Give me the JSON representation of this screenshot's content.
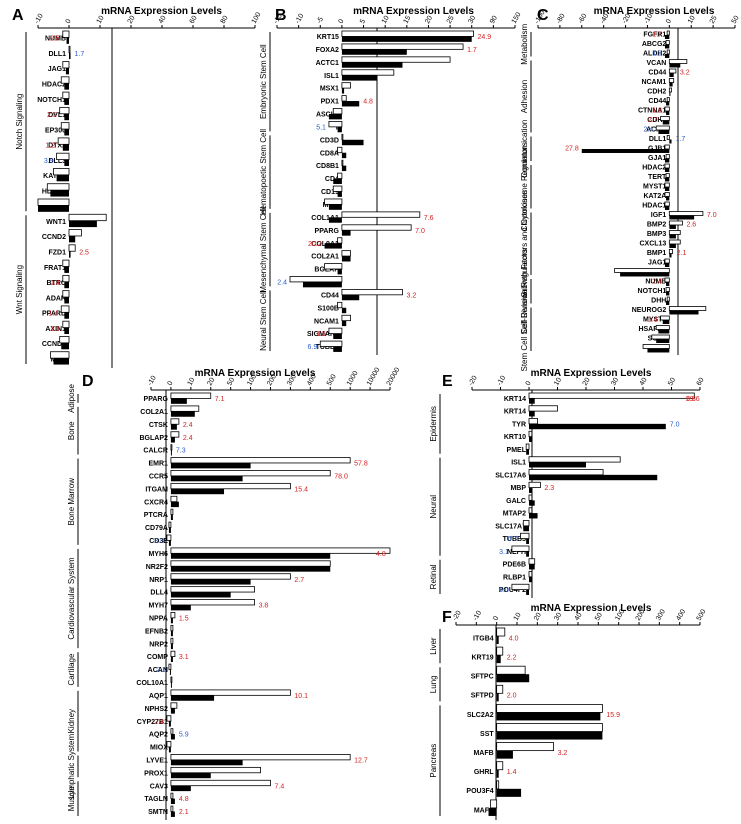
{
  "figure": {
    "panels": [
      "A",
      "B",
      "C",
      "D",
      "E",
      "F"
    ]
  },
  "colors": {
    "open_bar": "#ffffff",
    "filled_bar": "#000000",
    "ratio_red": "#d62020",
    "ratio_blue": "#2a5cc8"
  },
  "chart_data": [
    {
      "panel": "A",
      "type": "bar",
      "orientation": "horizontal",
      "xlabel": "mRNA Expression Levels",
      "ticks": [
        "-10",
        "0",
        "10",
        "20",
        "40",
        "60",
        "80",
        "100"
      ],
      "groups": [
        {
          "label": "Notch Signaling",
          "genes": [
            "NUMB",
            "DLL1",
            "JAG1",
            "HDAC2",
            "NOTCH1",
            "DVL1",
            "EP300",
            "DTX2",
            "DLL3",
            "KAT2A",
            "HDAC1",
            "DTX2"
          ]
        },
        {
          "label": "Wnt Signaling",
          "genes": [
            "WNT1",
            "CCND2",
            "FZD1",
            "FRAT1",
            "BTRC",
            "ADAR",
            "PPARD",
            "AXIN1",
            "CCND1",
            "MYC"
          ]
        }
      ],
      "series": [
        {
          "name": "open",
          "values": [
            -2,
            0.2,
            -2,
            -2.5,
            -2,
            -3,
            -2.5,
            -3.5,
            -4,
            -5,
            -7,
            -12,
            12,
            4,
            2,
            -2,
            -2,
            -2,
            -2.5,
            -2,
            -3,
            -6
          ]
        },
        {
          "name": "filled",
          "values": [
            -0.8,
            0.5,
            -1,
            -1.5,
            -1.5,
            -1.5,
            -1.5,
            -2,
            -1.5,
            -4,
            -6,
            -10,
            9,
            2,
            0.5,
            -1.5,
            -1.5,
            -1.5,
            -1.5,
            -1.5,
            -2.5,
            -5
          ]
        }
      ],
      "ratios": [
        [
          "NUMB",
          "2.5",
          "red"
        ],
        [
          "DLL1",
          "1.7",
          "blue"
        ],
        [
          "DVL1",
          "2.5",
          "red"
        ],
        [
          "DTX2",
          "1.2",
          "red"
        ],
        [
          "DLL3",
          "3.9",
          "blue"
        ],
        [
          "FZD1",
          "2.5",
          "red"
        ],
        [
          "BTRC",
          "1.4",
          "red"
        ],
        [
          "PPARD",
          "1.4",
          "red"
        ],
        [
          "AXIN1",
          "1.3",
          "red"
        ]
      ]
    },
    {
      "panel": "B",
      "type": "bar",
      "orientation": "horizontal",
      "xlabel": "mRNA Expression Levels",
      "ticks": [
        "-15",
        "-10",
        "-5",
        "0",
        "5",
        "10",
        "15",
        "20",
        "25",
        "30",
        "90",
        "150"
      ],
      "groups": [
        {
          "label": "Embryonic Stem Cell",
          "genes": [
            "KRT15",
            "FOXA2",
            "ACTC1",
            "ISL1",
            "MSX1",
            "PDX1",
            "ASCL2",
            "T"
          ]
        },
        {
          "label": "Hematopoetic Stem Cell",
          "genes": [
            "CD3D",
            "CD8A",
            "CD8B1",
            "CD4",
            "CD19",
            "MME"
          ]
        },
        {
          "label": "Mesenchymal Stem Cell",
          "genes": [
            "COL1A1",
            "PPARG",
            "COL9A1",
            "COL2A1",
            "BGLAP",
            "ACAN"
          ]
        },
        {
          "label": "Neural Stem Cell",
          "genes": [
            "CD44",
            "S100B",
            "NCAM1",
            "SIGMAR1",
            "TUBB3"
          ]
        }
      ],
      "series": [
        {
          "name": "open",
          "values": [
            35,
            28,
            25,
            12,
            2,
            1,
            -2,
            -3,
            0,
            -1,
            0,
            -1,
            -2,
            -4,
            18,
            16,
            -1,
            2,
            -4,
            -12,
            14,
            -1,
            2,
            -3,
            -5
          ]
        },
        {
          "name": "filled",
          "values": [
            30,
            15,
            14,
            8,
            0.5,
            4,
            -3,
            -1,
            5,
            1,
            1,
            -2,
            -1,
            -3,
            -3,
            2,
            -4,
            2,
            -1,
            -9,
            4,
            1,
            1,
            -2,
            -2
          ]
        }
      ],
      "ratios": [
        [
          "KRT15",
          "24.9",
          "red"
        ],
        [
          "FOXA2",
          "1.7",
          "red"
        ],
        [
          "PDX1",
          "4.8",
          "red"
        ],
        [
          "T",
          "5.1",
          "blue"
        ],
        [
          "COL1A1",
          "7.6",
          "red"
        ],
        [
          "PPARG",
          "7.0",
          "red"
        ],
        [
          "COL9A1",
          "20.2",
          "red"
        ],
        [
          "ACAN",
          "2.4",
          "blue"
        ],
        [
          "CD44",
          "3.2",
          "red"
        ],
        [
          "SIGMAR1",
          "1.5",
          "red"
        ],
        [
          "TUBB3",
          "6.9",
          "blue"
        ]
      ]
    },
    {
      "panel": "C",
      "type": "bar",
      "orientation": "horizontal",
      "xlabel": "mRNA Expression Levels",
      "ticks": [
        "-100",
        "-80",
        "-60",
        "-40",
        "-20",
        "-10",
        "0",
        "10",
        "25",
        "50"
      ],
      "groups": [
        {
          "label": "Metabolism",
          "genes": [
            "FGFR1",
            "ABCG2",
            "ALDH2"
          ]
        },
        {
          "label": "Adhesion",
          "genes": [
            "VCAN",
            "CD44",
            "NCAM1",
            "CDH2",
            "CD44",
            "CTNNA1",
            "CDH1",
            "ACAN"
          ]
        },
        {
          "label": "Commun-ication",
          "genes": [
            "DLL1",
            "GJB1",
            "GJA1"
          ]
        },
        {
          "label": "Chromosome Regulators",
          "genes": [
            "HDAC2",
            "TERT",
            "MYST1",
            "KAT2A",
            "HDAC1"
          ]
        },
        {
          "label": "Growth Factors and Cytokines",
          "genes": [
            "IGF1",
            "BMP2",
            "BMP3",
            "CXCL13",
            "BMP1",
            "JAG1",
            "GDF3"
          ]
        },
        {
          "label": "Cell Division Regulators",
          "genes": [
            "NUMB",
            "NOTCH1",
            "DHH"
          ]
        },
        {
          "label": "Stem Cell Self-Renewal",
          "genes": [
            "NEUROG2",
            "MYST2",
            "HSAPA9",
            "SOX2",
            "SOX1"
          ]
        }
      ],
      "series": [
        {
          "name": "open",
          "values": [
            -1,
            -1.5,
            -1,
            8,
            3,
            2,
            1,
            -1,
            -2,
            -4,
            -6,
            -1,
            -2,
            -1.5,
            -2,
            -1.5,
            -2,
            -2,
            -2,
            18,
            6,
            5,
            5,
            1.5,
            -2,
            -30,
            -2,
            -1.5,
            -1,
            20,
            -4,
            -6,
            -8,
            -12
          ]
        },
        {
          "name": "filled",
          "values": [
            -2,
            -2,
            -2,
            5,
            2,
            1.5,
            0.5,
            -1.5,
            -1.5,
            -3,
            -5,
            1,
            -60,
            -2,
            -2,
            -2,
            -2,
            -1.5,
            -2,
            12,
            3,
            3,
            3,
            1,
            -2,
            -25,
            -1.5,
            -1.5,
            -1.5,
            15,
            -3,
            -5,
            -6,
            -10
          ]
        }
      ],
      "ratios": [
        [
          "FGFR1",
          "1.7",
          "red"
        ],
        [
          "ALDH2",
          "1.9",
          "blue"
        ],
        [
          "CD44",
          "3.2",
          "red"
        ],
        [
          "CTNNA1",
          "1.3",
          "red"
        ],
        [
          "CDH1",
          "2.7",
          "red"
        ],
        [
          "ACAN",
          "2.4",
          "blue"
        ],
        [
          "DLL1",
          "1.7",
          "blue"
        ],
        [
          "GJB1",
          "27.8",
          "red"
        ],
        [
          "IGF1",
          "7.0",
          "red"
        ],
        [
          "BMP2",
          "2.6",
          "red"
        ],
        [
          "BMP1",
          "2.1",
          "red"
        ],
        [
          "NUMB",
          "2.4",
          "red"
        ],
        [
          "MYST2",
          "1.4",
          "red"
        ]
      ]
    },
    {
      "panel": "D",
      "type": "bar",
      "orientation": "horizontal",
      "xlabel": "mRNA Expression Levels",
      "ticks": [
        "-10",
        "0",
        "10",
        "20",
        "50",
        "100",
        "200",
        "300",
        "400",
        "500",
        "1000",
        "10000",
        "20000"
      ],
      "groups": [
        {
          "label": "Adipose",
          "genes": [
            "PPARG"
          ]
        },
        {
          "label": "Bone",
          "genes": [
            "COL2A1",
            "CTSK",
            "BGLAP2",
            "CALCR"
          ]
        },
        {
          "label": "Bone Marrow",
          "genes": [
            "EMR1",
            "CCR5",
            "ITGAM",
            "CXCR4",
            "PTCRA",
            "CD79A",
            "CD3E"
          ]
        },
        {
          "label": "Cardiovascular System",
          "genes": [
            "MYH6",
            "NR2F2",
            "NRP1",
            "DLL4",
            "MYH7",
            "NPPA",
            "EFNB2",
            "NRP2"
          ]
        },
        {
          "label": "Cartilage",
          "genes": [
            "COMP",
            "ACAN",
            "COL10A1"
          ]
        },
        {
          "label": "Kidney",
          "genes": [
            "AQP1",
            "NPHS2",
            "CYP27B1",
            "AQP2",
            "MIOX"
          ]
        },
        {
          "label": "Lymphatic System",
          "genes": [
            "LYVE1",
            "PROX1"
          ]
        },
        {
          "label": "Muscle",
          "genes": [
            "CAV3",
            "TAGLN",
            "SMTN"
          ]
        }
      ],
      "series": [
        {
          "name": "open",
          "values": [
            20,
            14,
            4,
            4,
            0.5,
            1000,
            500,
            300,
            3,
            1,
            -1,
            -2,
            20000,
            500,
            300,
            120,
            120,
            2,
            1,
            1,
            2,
            -1,
            0.5,
            300,
            3,
            -2,
            1,
            -2,
            1000,
            150,
            200,
            1,
            1
          ]
        },
        {
          "name": "filled",
          "values": [
            8,
            12,
            3,
            2,
            0.5,
            100,
            80,
            40,
            4,
            1,
            -1,
            -1,
            500,
            500,
            100,
            50,
            10,
            1,
            1,
            1,
            1,
            -0.5,
            0.5,
            25,
            2,
            -1,
            2,
            -1,
            80,
            20,
            10,
            2,
            2
          ]
        }
      ],
      "ratios": [
        [
          "PPARG",
          "7.1",
          "red"
        ],
        [
          "CTSK",
          "2.4",
          "red"
        ],
        [
          "BGLAP2",
          "2.4",
          "red"
        ],
        [
          "CALCR",
          "7.3",
          "blue"
        ],
        [
          "EMR1",
          "57.8",
          "red"
        ],
        [
          "CCR5",
          "78.0",
          "red"
        ],
        [
          "ITGAM",
          "15.4",
          "red"
        ],
        [
          "CD3E",
          "3.3",
          "blue"
        ],
        [
          "MYH6",
          "4.8",
          "red"
        ],
        [
          "NRP1",
          "2.7",
          "red"
        ],
        [
          "MYH7",
          "3.8",
          "red"
        ],
        [
          "NPPA",
          "1.5",
          "red"
        ],
        [
          "COMP",
          "3.1",
          "red"
        ],
        [
          "ACAN",
          "2.1",
          "blue"
        ],
        [
          "AQP1",
          "10.1",
          "red"
        ],
        [
          "CYP27B1",
          "2.4",
          "red"
        ],
        [
          "AQP2",
          "5.9",
          "blue"
        ],
        [
          "LYVE1",
          "12.7",
          "red"
        ],
        [
          "CAV3",
          "7.4",
          "red"
        ],
        [
          "TAGLN",
          "4.8",
          "red"
        ],
        [
          "SMTN",
          "2.1",
          "red"
        ]
      ]
    },
    {
      "panel": "E",
      "type": "bar",
      "orientation": "horizontal",
      "xlabel": "mRNA Expression Levels",
      "ticks": [
        "-20",
        "-10",
        "0",
        "10",
        "20",
        "30",
        "40",
        "50",
        "60"
      ],
      "groups": [
        {
          "label": "Epidermis",
          "genes": [
            "KRT14",
            "KRT14",
            "TYR",
            "KRT10",
            "PMEL"
          ]
        },
        {
          "label": "Neural",
          "genes": [
            "ISL1",
            "SLC17A6",
            "MBP",
            "GALC",
            "MTAP2",
            "SLC17A7",
            "TUBB3",
            "NEFH"
          ]
        },
        {
          "label": "Retinal",
          "genes": [
            "PDE6B",
            "RLBP1",
            "POU4F2"
          ]
        }
      ],
      "series": [
        {
          "name": "open",
          "values": [
            58,
            10,
            3,
            1,
            -1,
            32,
            26,
            4,
            1,
            1,
            -2,
            -3,
            -6,
            2,
            1,
            -6
          ]
        },
        {
          "name": "filled",
          "values": [
            2,
            2,
            48,
            1,
            -1,
            20,
            45,
            1,
            2,
            3,
            -2,
            -1,
            -1,
            2,
            1,
            -1
          ]
        }
      ],
      "ratios": [
        [
          "KRT14",
          "29.6",
          "red"
        ],
        [
          "KRT14",
          "5.8",
          "red"
        ],
        [
          "TYR",
          "7.0",
          "blue"
        ],
        [
          "MBP",
          "2.3",
          "red"
        ],
        [
          "TUBB3",
          "6.7",
          "blue"
        ],
        [
          "NEFH",
          "3.1",
          "blue"
        ],
        [
          "POU4F2",
          "6.0",
          "blue"
        ]
      ]
    },
    {
      "panel": "F",
      "type": "bar",
      "orientation": "horizontal",
      "xlabel": "mRNA Expression Levels",
      "ticks": [
        "-20",
        "-10",
        "0",
        "10",
        "20",
        "30",
        "40",
        "50",
        "100",
        "200",
        "300",
        "400",
        "500"
      ],
      "groups": [
        {
          "label": "Liver",
          "genes": [
            "ITGB4",
            "KRT19"
          ]
        },
        {
          "label": "Lung",
          "genes": [
            "SFTPC",
            "SFTPD"
          ]
        },
        {
          "label": "Pancreas",
          "genes": [
            "SLC2A2",
            "SST",
            "MAFB",
            "GHRL",
            "POU3F4",
            "MAFA"
          ]
        }
      ],
      "series": [
        {
          "name": "open",
          "values": [
            4,
            3,
            14,
            3,
            60,
            60,
            28,
            3,
            1,
            -3
          ]
        },
        {
          "name": "filled",
          "values": [
            1,
            2,
            16,
            1,
            55,
            60,
            8,
            1,
            12,
            -4
          ]
        }
      ],
      "ratios": [
        [
          "ITGB4",
          "4.0",
          "red"
        ],
        [
          "KRT19",
          "2.2",
          "red"
        ],
        [
          "SFTPD",
          "2.0",
          "red"
        ],
        [
          "SLC2A2",
          "15.9",
          "red"
        ],
        [
          "MAFB",
          "3.2",
          "red"
        ],
        [
          "GHRL",
          "1.4",
          "red"
        ]
      ]
    }
  ]
}
